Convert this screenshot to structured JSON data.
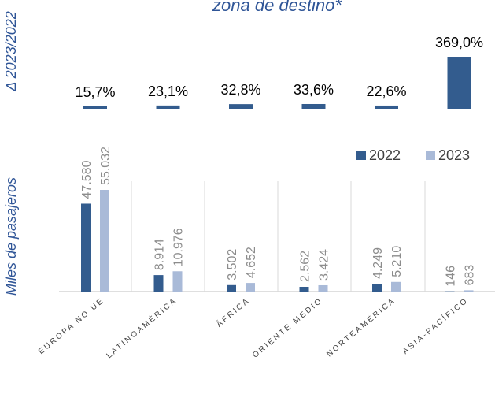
{
  "chart_data": [
    {
      "type": "bar",
      "title": "zona de destino*",
      "ylabel": "Δ 2023/2022",
      "categories": [
        "EUROPA NO UE",
        "LATINOAMÉRICA",
        "ÁFRICA",
        "ORIENTE MEDIO",
        "NORTEAMÉRICA",
        "ASIA-PACÍFICO"
      ],
      "values": [
        15.7,
        23.1,
        32.8,
        33.6,
        22.6,
        369.0
      ],
      "value_labels": [
        "15,7%",
        "23,1%",
        "32,8%",
        "33,6%",
        "22,6%",
        "369,0%"
      ],
      "color": "#335c8e"
    },
    {
      "type": "grouped_bar",
      "ylabel": "Miles de pasajeros",
      "categories": [
        "EUROPA NO UE",
        "LATINOAMÉRICA",
        "ÁFRICA",
        "ORIENTE MEDIO",
        "NORTEAMÉRICA",
        "ASIA-PACÍFICO"
      ],
      "series": [
        {
          "name": "2022",
          "color": "#335c8e",
          "values": [
            47580,
            8914,
            3502,
            2562,
            4249,
            146
          ],
          "value_labels": [
            "47.580",
            "8.914",
            "3.502",
            "2.562",
            "4.249",
            "146"
          ]
        },
        {
          "name": "2023",
          "color": "#a9bad8",
          "values": [
            55032,
            10976,
            4652,
            3424,
            5210,
            683
          ],
          "value_labels": [
            "55.032",
            "10.976",
            "4.652",
            "3.424",
            "5.210",
            "683"
          ]
        }
      ],
      "legend": "top-right"
    }
  ]
}
